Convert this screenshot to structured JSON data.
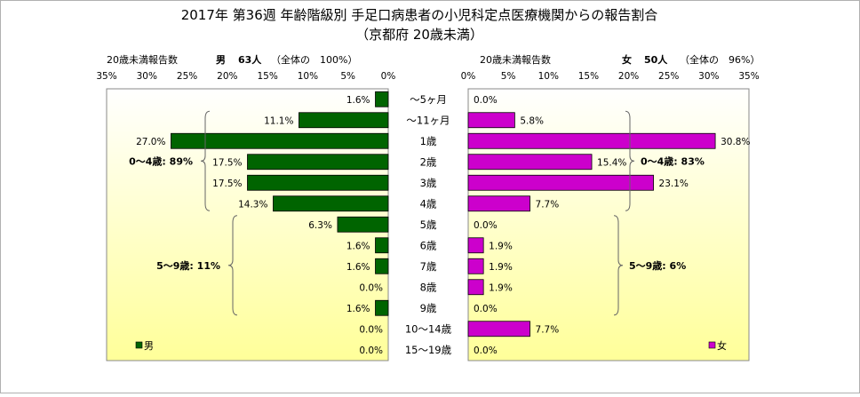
{
  "title": {
    "line1": "2017年 第36週 年齢階級別 手足口病患者の小児科定点医療機関からの報告割合",
    "line2": "（京都府 20歳未満）"
  },
  "colors": {
    "male": "#006400",
    "female": "#cc00cc",
    "plot_top": "#ffffff",
    "plot_bottom": "#ffff99",
    "axis": "#888888"
  },
  "chart_data": {
    "type": "bar",
    "orientation": "horizontal",
    "categories": [
      "〜5ヶ月",
      "〜11ヶ月",
      "1歳",
      "2歳",
      "3歳",
      "4歳",
      "5歳",
      "6歳",
      "7歳",
      "8歳",
      "9歳",
      "10〜14歳",
      "15〜19歳"
    ],
    "xlim": [
      0,
      35
    ],
    "ticks": [
      "0%",
      "5%",
      "10%",
      "15%",
      "20%",
      "25%",
      "30%",
      "35%"
    ],
    "male": {
      "axis_label": "20歳未満報告数",
      "header_sex": "男",
      "header_count": "63人",
      "header_share": "（全体の　100%）",
      "legend": "男",
      "values": [
        1.6,
        11.1,
        27.0,
        17.5,
        17.5,
        14.3,
        6.3,
        1.6,
        1.6,
        0.0,
        1.6,
        0.0,
        0.0
      ],
      "labels": [
        "1.6%",
        "11.1%",
        "27.0%",
        "17.5%",
        "17.5%",
        "14.3%",
        "6.3%",
        "1.6%",
        "1.6%",
        "0.0%",
        "1.6%",
        "0.0%",
        "0.0%"
      ],
      "groups": [
        {
          "label": "0〜4歳: 89%",
          "from": 1,
          "to": 5
        },
        {
          "label": "5〜9歳: 11%",
          "from": 6,
          "to": 10
        }
      ]
    },
    "female": {
      "axis_label": "20歳未満報告数",
      "header_sex": "女",
      "header_count": "50人",
      "header_share": "（全体の　96%）",
      "legend": "女",
      "values": [
        0.0,
        5.8,
        30.8,
        15.4,
        23.1,
        7.7,
        0.0,
        1.9,
        1.9,
        1.9,
        0.0,
        7.7,
        0.0
      ],
      "labels": [
        "0.0%",
        "5.8%",
        "30.8%",
        "15.4%",
        "23.1%",
        "7.7%",
        "0.0%",
        "1.9%",
        "1.9%",
        "1.9%",
        "0.0%",
        "7.7%",
        "0.0%"
      ],
      "groups": [
        {
          "label": "0〜4歳: 83%",
          "from": 1,
          "to": 5
        },
        {
          "label": "5〜9歳: 6%",
          "from": 6,
          "to": 10
        }
      ]
    }
  }
}
